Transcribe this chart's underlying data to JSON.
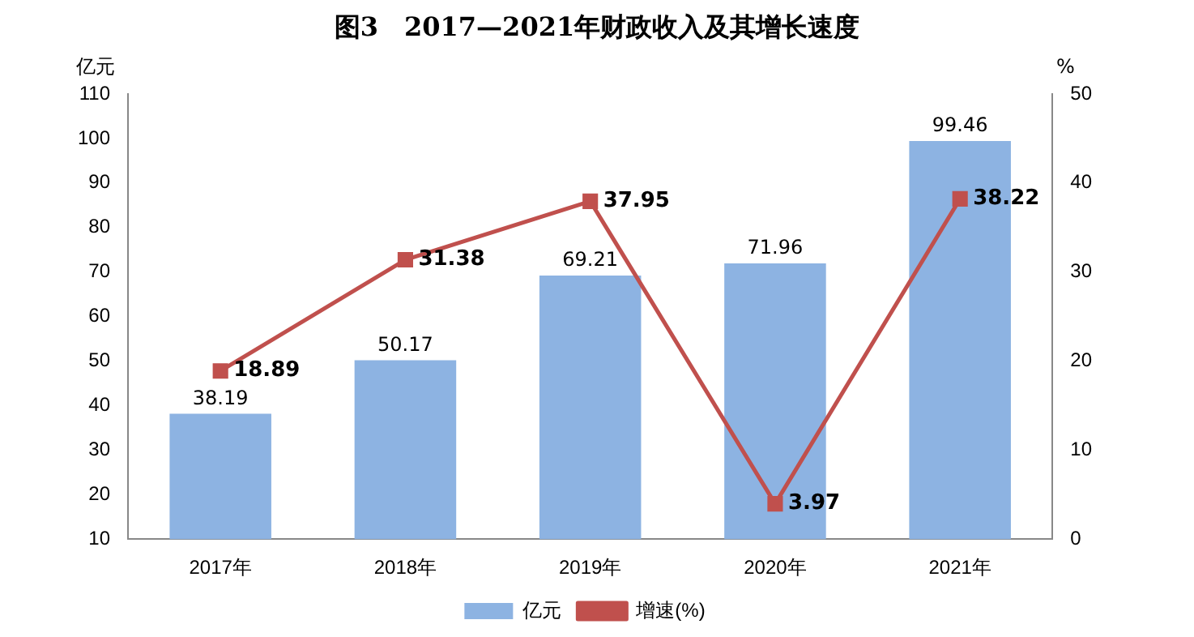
{
  "chart_data": {
    "type": "bar",
    "title": "图3　2017—2021年财政收入及其增长速度",
    "ylabel": "亿元",
    "y2label": "%",
    "categories": [
      "2017年",
      "2018年",
      "2019年",
      "2020年",
      "2021年"
    ],
    "series": [
      {
        "name": "亿元",
        "color": "#8db3e2",
        "values": [
          38.19,
          50.17,
          69.21,
          71.96,
          99.46
        ]
      },
      {
        "name": "增速(%)",
        "type": "line",
        "axis": "y2",
        "color": "#c0504d",
        "values": [
          18.89,
          31.38,
          37.95,
          3.97,
          38.22
        ]
      }
    ],
    "ylim": [
      10,
      110
    ],
    "yticks": [
      10,
      20,
      30,
      40,
      50,
      60,
      70,
      80,
      90,
      100,
      110
    ],
    "y2lim": [
      0,
      50
    ],
    "y2ticks": [
      0,
      10,
      20,
      30,
      40,
      50
    ],
    "grid": false,
    "legend": "bottom",
    "marker": "square",
    "line_style": "solid",
    "data_labels": true
  }
}
